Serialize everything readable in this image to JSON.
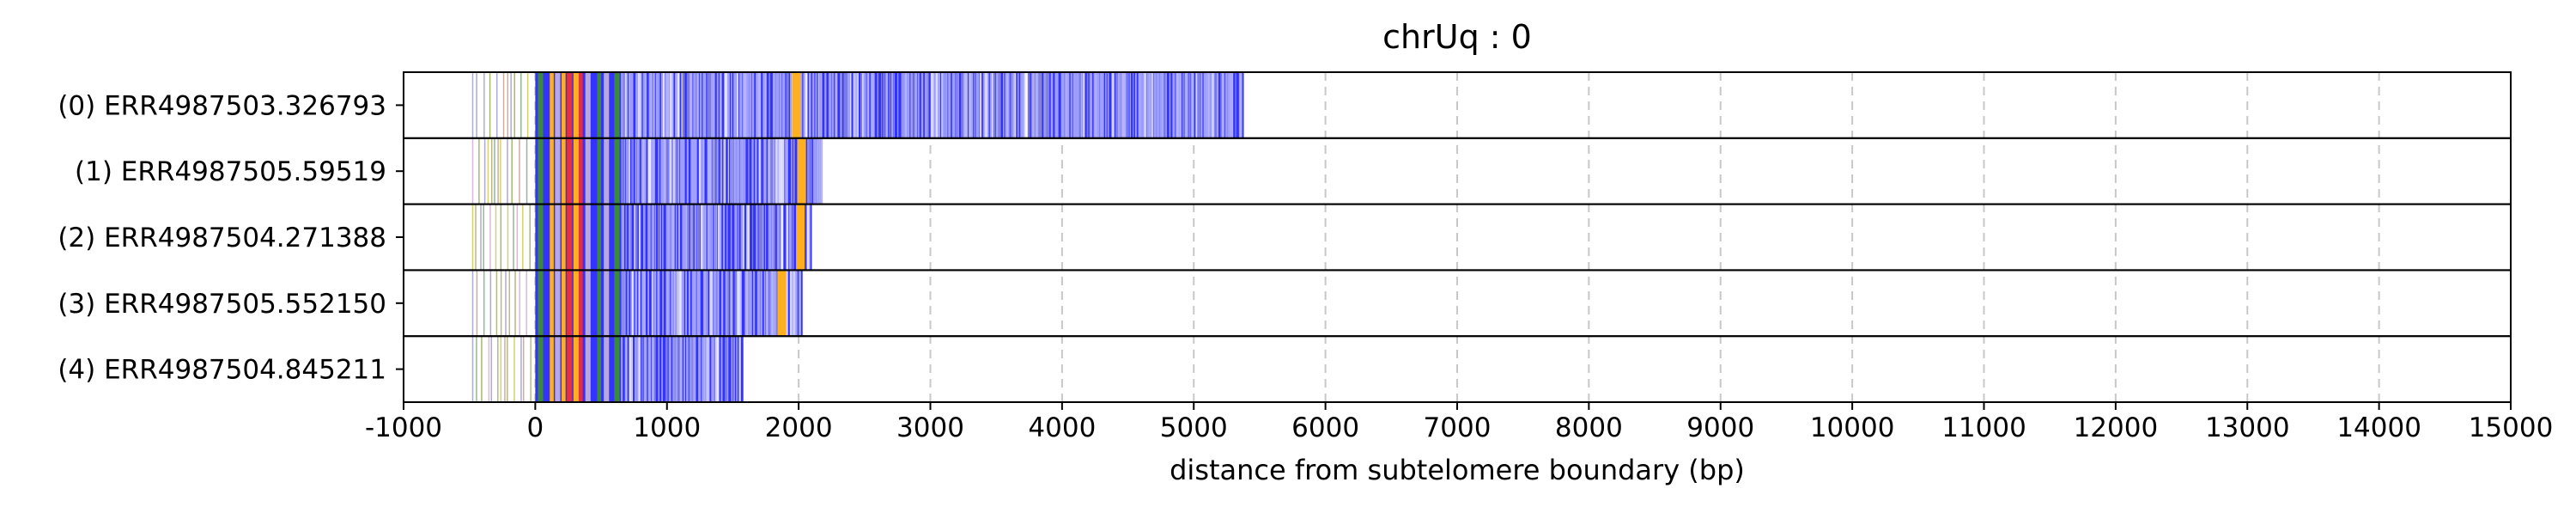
{
  "chart_data": {
    "type": "bar",
    "title": "chrUq : 0",
    "xlabel": "distance from subtelomere boundary (bp)",
    "ylabel": "",
    "xlim": [
      -1000,
      15000
    ],
    "xticks": [
      -1000,
      0,
      1000,
      2000,
      3000,
      4000,
      5000,
      6000,
      7000,
      8000,
      9000,
      10000,
      11000,
      12000,
      13000,
      14000,
      15000
    ],
    "xtick_labels": [
      "-1000",
      "0",
      "1000",
      "2000",
      "3000",
      "4000",
      "5000",
      "6000",
      "7000",
      "8000",
      "9000",
      "10000",
      "11000",
      "12000",
      "13000",
      "14000",
      "15000"
    ],
    "grid": "vertical dashed",
    "colors": {
      "main_repeat": "#3333ff",
      "accent_orange": "#ffb020",
      "accent_red": "#e8303c",
      "accent_green": "#3a8a3a",
      "accent_lavender": "#b8a8e0",
      "grid": "#c8c8c8"
    },
    "reads": [
      {
        "label": "(0) ERR4987503.326793",
        "start": -480,
        "end": 5380,
        "orange_at": 1950
      },
      {
        "label": "(1) ERR4987505.59519",
        "start": -480,
        "end": 2180,
        "orange_at": 1990
      },
      {
        "label": "(2) ERR4987504.271388",
        "start": -480,
        "end": 2100,
        "orange_at": 1980
      },
      {
        "label": "(3) ERR4987505.552150",
        "start": -480,
        "end": 2030,
        "orange_at": 1840
      },
      {
        "label": "(4) ERR4987504.845211",
        "start": -480,
        "end": 1580,
        "orange_at": null
      }
    ]
  }
}
